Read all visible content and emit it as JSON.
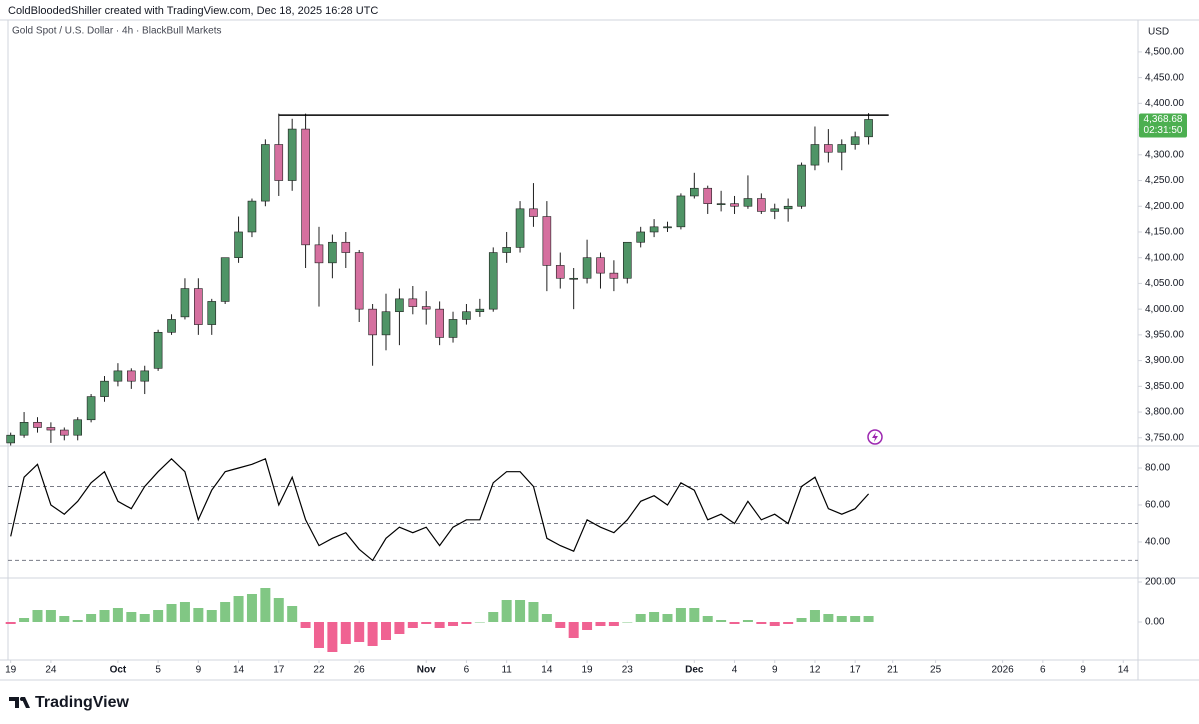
{
  "header": {
    "credit": "ColdBloodedShiller created with TradingView.com, Dec 18, 2025 16:28 UTC",
    "symbol": "Gold Spot / U.S. Dollar · 4h · BlackBull Markets",
    "currency": "USD"
  },
  "footer": {
    "brand": "TradingView"
  },
  "chart_data": [
    {
      "type": "candlestick",
      "up_color": "#4f9466",
      "down_color": "#d5709f",
      "wick_color": "#1e1e1e",
      "open": [
        3740,
        3755,
        3780,
        3770,
        3765,
        3755,
        3785,
        3830,
        3860,
        3880,
        3860,
        3885,
        3955,
        3985,
        4040,
        3970,
        4015,
        4100,
        4150,
        4210,
        4320,
        4250,
        4350,
        4125,
        4090,
        4130,
        4110,
        4000,
        3950,
        3995,
        4020,
        4005,
        4000,
        3945,
        3980,
        3995,
        4000,
        4110,
        4120,
        4195,
        4180,
        4085,
        4060,
        4060,
        4100,
        4070,
        4060,
        4130,
        4150,
        4160,
        4160,
        4220,
        4235,
        4205,
        4205,
        4200,
        4215,
        4190,
        4195,
        4200,
        4280,
        4320,
        4305,
        4320,
        4335
      ],
      "high": [
        3760,
        3800,
        3790,
        3780,
        3770,
        3790,
        3835,
        3870,
        3895,
        3885,
        3890,
        3960,
        3990,
        4060,
        4060,
        4020,
        4100,
        4180,
        4215,
        4330,
        4380,
        4370,
        4380,
        4160,
        4145,
        4150,
        4115,
        4010,
        4030,
        4040,
        4045,
        4035,
        4015,
        3995,
        4010,
        4020,
        4120,
        4150,
        4210,
        4245,
        4210,
        4110,
        4080,
        4135,
        4110,
        4095,
        4130,
        4160,
        4175,
        4170,
        4225,
        4265,
        4240,
        4230,
        4220,
        4260,
        4225,
        4205,
        4215,
        4285,
        4355,
        4350,
        4330,
        4345,
        4381
      ],
      "low": [
        3735,
        3750,
        3760,
        3740,
        3745,
        3745,
        3780,
        3820,
        3850,
        3845,
        3835,
        3880,
        3950,
        3980,
        3950,
        3950,
        4010,
        4090,
        4140,
        4200,
        4220,
        4230,
        4080,
        4005,
        4060,
        4080,
        3975,
        3890,
        3920,
        3930,
        3990,
        3970,
        3930,
        3935,
        3970,
        3985,
        3995,
        4090,
        4110,
        4160,
        4035,
        4040,
        4000,
        4050,
        4040,
        4035,
        4050,
        4120,
        4140,
        4150,
        4155,
        4215,
        4185,
        4190,
        4185,
        4195,
        4185,
        4175,
        4170,
        4195,
        4270,
        4285,
        4270,
        4310,
        4320
      ],
      "close": [
        3755,
        3780,
        3770,
        3765,
        3755,
        3785,
        3830,
        3860,
        3880,
        3860,
        3880,
        3955,
        3980,
        4040,
        3970,
        4015,
        4100,
        4150,
        4210,
        4320,
        4250,
        4350,
        4125,
        4090,
        4130,
        4110,
        4000,
        3950,
        3995,
        4020,
        4005,
        4000,
        3945,
        3980,
        3995,
        4000,
        4110,
        4120,
        4195,
        4180,
        4085,
        4060,
        4060,
        4100,
        4070,
        4060,
        4130,
        4150,
        4160,
        4160,
        4220,
        4235,
        4205,
        4205,
        4200,
        4215,
        4190,
        4195,
        4200,
        4280,
        4320,
        4305,
        4320,
        4335,
        4368.68
      ],
      "resistance": 4377,
      "price_tag": "4,368.68",
      "countdown": "02:31:50",
      "tag_color": "#4caf50",
      "xlim": [
        -0.2,
        84.1
      ],
      "ylim": [
        3734,
        4562
      ],
      "yticks": [
        {
          "value": 3750,
          "label": "3,750.00"
        },
        {
          "value": 3800,
          "label": "3,800.00"
        },
        {
          "value": 3850,
          "label": "3,850.00"
        },
        {
          "value": 3900,
          "label": "3,900.00"
        },
        {
          "value": 3950,
          "label": "3,950.00"
        },
        {
          "value": 4000,
          "label": "4,000.00"
        },
        {
          "value": 4050,
          "label": "4,050.00"
        },
        {
          "value": 4100,
          "label": "4,100.00"
        },
        {
          "value": 4150,
          "label": "4,150.00"
        },
        {
          "value": 4200,
          "label": "4,200.00"
        },
        {
          "value": 4250,
          "label": "4,250.00"
        },
        {
          "value": 4300,
          "label": "4,300.00"
        },
        {
          "value": 4350,
          "label": "4,350.00"
        },
        {
          "value": 4400,
          "label": "4,400.00"
        },
        {
          "value": 4450,
          "label": "4,450.00"
        },
        {
          "value": 4500,
          "label": "4,500.00"
        }
      ]
    },
    {
      "type": "line",
      "color": "#000000",
      "values": [
        43,
        75,
        82,
        60,
        55,
        62,
        72,
        78,
        62,
        58,
        70,
        78,
        85,
        78,
        52,
        68,
        78,
        80,
        82,
        85,
        60,
        75,
        52,
        38,
        42,
        45,
        36,
        30,
        42,
        48,
        45,
        48,
        38,
        48,
        52,
        52,
        72,
        78,
        78,
        70,
        42,
        38,
        35,
        52,
        48,
        45,
        52,
        62,
        65,
        60,
        72,
        68,
        52,
        55,
        50,
        62,
        52,
        55,
        50,
        70,
        75,
        58,
        55,
        58,
        66
      ],
      "hlines": [
        70,
        50,
        30
      ],
      "xlim": [
        -0.2,
        84.1
      ],
      "ylim": [
        20.5,
        91.9
      ],
      "yticks": [
        {
          "value": 40,
          "label": "40.00"
        },
        {
          "value": 60,
          "label": "60.00"
        },
        {
          "value": 80,
          "label": "80.00"
        }
      ]
    },
    {
      "type": "bar",
      "positive_color": "#81c784",
      "negative_color": "#f06292",
      "values": [
        -10,
        20,
        60,
        60,
        30,
        10,
        40,
        60,
        70,
        50,
        40,
        60,
        90,
        100,
        70,
        60,
        100,
        130,
        140,
        170,
        120,
        80,
        -30,
        -130,
        -150,
        -110,
        -100,
        -120,
        -90,
        -60,
        -30,
        -10,
        -30,
        -20,
        -10,
        0,
        50,
        110,
        110,
        100,
        40,
        -30,
        -80,
        -40,
        -20,
        -20,
        0,
        40,
        50,
        40,
        70,
        70,
        30,
        10,
        -10,
        10,
        -10,
        -20,
        -10,
        20,
        60,
        40,
        30,
        30,
        30
      ],
      "xlim": [
        -0.2,
        84.1
      ],
      "ylim": [
        -190,
        220
      ],
      "yticks": [
        {
          "value": 0,
          "label": "0.00"
        },
        {
          "value": 200,
          "label": "200.00"
        }
      ],
      "xticks": [
        {
          "value": 0,
          "label": "19"
        },
        {
          "value": 3,
          "label": "24"
        },
        {
          "value": 8,
          "label": "Oct"
        },
        {
          "value": 11,
          "label": "5"
        },
        {
          "value": 14,
          "label": "9"
        },
        {
          "value": 17,
          "label": "14"
        },
        {
          "value": 20,
          "label": "17"
        },
        {
          "value": 23,
          "label": "22"
        },
        {
          "value": 26,
          "label": "26"
        },
        {
          "value": 31,
          "label": "Nov"
        },
        {
          "value": 34,
          "label": "6"
        },
        {
          "value": 37,
          "label": "11"
        },
        {
          "value": 40,
          "label": "14"
        },
        {
          "value": 43,
          "label": "19"
        },
        {
          "value": 46,
          "label": "23"
        },
        {
          "value": 51,
          "label": "Dec"
        },
        {
          "value": 54,
          "label": "4"
        },
        {
          "value": 57,
          "label": "9"
        },
        {
          "value": 60,
          "label": "12"
        },
        {
          "value": 63,
          "label": "17"
        },
        {
          "value": 65.8,
          "label": "21"
        },
        {
          "value": 69,
          "label": "25"
        },
        {
          "value": 74,
          "label": "2026"
        },
        {
          "value": 77,
          "label": "6"
        },
        {
          "value": 80,
          "label": "9"
        },
        {
          "value": 83,
          "label": "14"
        }
      ]
    }
  ]
}
